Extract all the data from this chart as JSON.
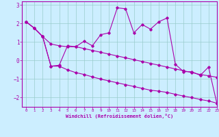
{
  "xlabel": "Windchill (Refroidissement éolien,°C)",
  "background_color": "#cceeff",
  "line_color": "#aa00aa",
  "grid_color": "#99cccc",
  "x_hours": [
    0,
    1,
    2,
    3,
    4,
    5,
    6,
    7,
    8,
    9,
    10,
    11,
    12,
    13,
    14,
    15,
    16,
    17,
    18,
    19,
    20,
    21,
    22,
    23
  ],
  "y_actual": [
    2.1,
    1.75,
    1.3,
    -0.3,
    -0.25,
    0.8,
    0.75,
    1.05,
    0.8,
    1.4,
    1.5,
    2.85,
    2.8,
    1.5,
    1.95,
    1.7,
    2.1,
    2.3,
    -0.2,
    -0.6,
    -0.6,
    -0.8,
    -0.35,
    -2.3
  ],
  "y_upper": [
    2.1,
    1.75,
    1.3,
    0.9,
    0.8,
    0.75,
    0.75,
    0.65,
    0.55,
    0.45,
    0.35,
    0.25,
    0.15,
    0.05,
    -0.05,
    -0.15,
    -0.25,
    -0.35,
    -0.45,
    -0.55,
    -0.65,
    -0.75,
    -0.82,
    -0.9
  ],
  "y_lower": [
    2.1,
    1.75,
    1.3,
    -0.3,
    -0.3,
    -0.5,
    -0.65,
    -0.75,
    -0.88,
    -1.0,
    -1.1,
    -1.2,
    -1.3,
    -1.4,
    -1.5,
    -1.6,
    -1.65,
    -1.72,
    -1.82,
    -1.92,
    -2.0,
    -2.1,
    -2.18,
    -2.3
  ],
  "ylim": [
    -2.5,
    3.2
  ],
  "xlim": [
    -0.5,
    23
  ]
}
